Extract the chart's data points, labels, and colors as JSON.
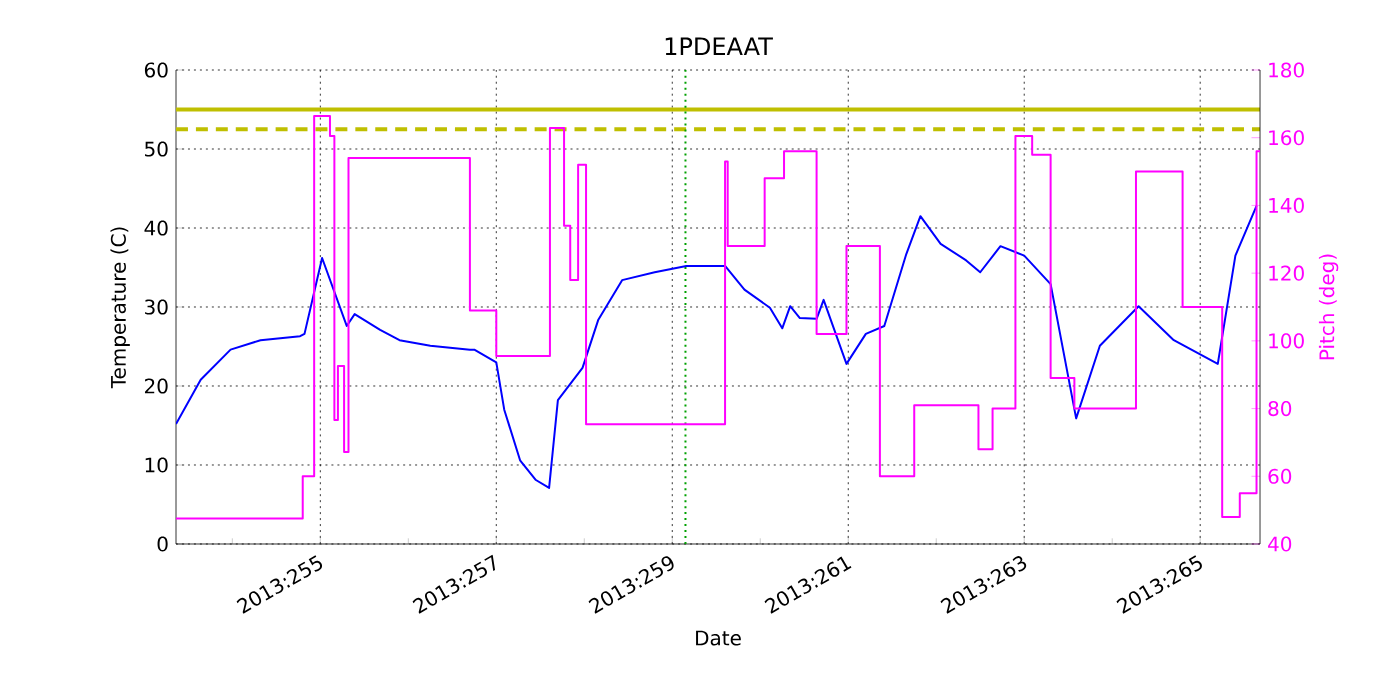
{
  "chart_data": {
    "type": "line",
    "title": "1PDEAAT",
    "xlabel": "Date",
    "ylabel": "Temperature (C)",
    "y2label": "Pitch (deg)",
    "xlim": [
      "2013-09-10T08:38",
      "2013-09-22T16:19"
    ],
    "xticks": [
      {
        "value": "2013-09-11",
        "label": null
      },
      {
        "value": "2013-09-12",
        "label": "2013:255"
      },
      {
        "value": "2013-09-13",
        "label": null
      },
      {
        "value": "2013-09-14",
        "label": "2013:257"
      },
      {
        "value": "2013-09-15",
        "label": null
      },
      {
        "value": "2013-09-16",
        "label": "2013:259"
      },
      {
        "value": "2013-09-17",
        "label": null
      },
      {
        "value": "2013-09-18",
        "label": "2013:261"
      },
      {
        "value": "2013-09-19",
        "label": null
      },
      {
        "value": "2013-09-20",
        "label": "2013:263"
      },
      {
        "value": "2013-09-21",
        "label": null
      },
      {
        "value": "2013-09-22",
        "label": "2013:265"
      }
    ],
    "ylim": [
      0,
      60
    ],
    "yticks": [
      0,
      10,
      20,
      30,
      40,
      50,
      60
    ],
    "y2lim": [
      40,
      180
    ],
    "y2ticks": [
      40,
      60,
      80,
      100,
      120,
      140,
      160,
      180
    ],
    "grid": true,
    "series": [
      {
        "color": "#0000ff",
        "x": [
          "2013-09-10T08:38",
          "2013-09-10T15:22",
          "2013-09-10T23:31",
          "2013-09-11T07:41",
          "2013-09-11T18:29",
          "2013-09-11T19:41",
          "2013-09-12T00:29",
          "2013-09-12T07:12",
          "2013-09-12T09:22",
          "2013-09-12T16:19",
          "2013-09-12T21:36",
          "2013-09-13T06:00",
          "2013-09-13T16:48",
          "2013-09-13T18:00",
          "2013-09-14T00:00",
          "2013-09-14T02:10",
          "2013-09-14T06:29",
          "2013-09-14T10:48",
          "2013-09-14T14:24",
          "2013-09-14T16:48",
          "2013-09-14T23:31",
          "2013-09-15T03:50",
          "2013-09-15T10:19",
          "2013-09-15T19:12",
          "2013-09-16T03:50",
          "2013-09-16T14:24",
          "2013-09-16T19:41",
          "2013-09-17T02:38",
          "2013-09-17T06:00",
          "2013-09-17T08:10",
          "2013-09-17T10:48",
          "2013-09-17T15:22",
          "2013-09-17T17:17",
          "2013-09-17T23:31",
          "2013-09-18T04:48",
          "2013-09-18T09:50",
          "2013-09-18T15:50",
          "2013-09-18T19:41",
          "2013-09-19T01:12",
          "2013-09-19T08:10",
          "2013-09-19T12:00",
          "2013-09-19T17:31",
          "2013-09-20T00:00",
          "2013-09-20T07:12",
          "2013-09-20T14:10",
          "2013-09-20T20:38",
          "2013-09-21T07:12",
          "2013-09-21T16:48",
          "2013-09-22T04:48",
          "2013-09-22T09:36",
          "2013-09-22T15:22"
        ],
        "values": [
          15.2,
          20.8,
          24.6,
          25.8,
          26.3,
          26.6,
          36.2,
          27.6,
          29.1,
          27.1,
          25.8,
          25.1,
          24.6,
          24.6,
          23.0,
          17.0,
          10.6,
          8.1,
          7.1,
          18.2,
          22.3,
          28.4,
          33.4,
          34.4,
          35.2,
          35.2,
          32.2,
          29.9,
          27.3,
          30.1,
          28.6,
          28.5,
          30.9,
          22.8,
          26.6,
          27.6,
          36.7,
          41.5,
          38.0,
          35.9,
          34.4,
          37.7,
          36.5,
          32.9,
          15.9,
          25.1,
          30.1,
          25.8,
          22.8,
          36.5,
          42.8
        ]
      },
      {
        "type": "step",
        "axis": "y2",
        "color": "#ff00ff",
        "x": [
          "2013-09-10T08:38",
          "2013-09-11T19:12",
          "2013-09-11T22:19",
          "2013-09-12T02:38",
          "2013-09-12T03:50",
          "2013-09-12T04:48",
          "2013-09-12T06:29",
          "2013-09-12T07:41",
          "2013-09-13T16:48",
          "2013-09-14T00:00",
          "2013-09-14T14:38",
          "2013-09-14T18:29",
          "2013-09-14T20:10",
          "2013-09-14T22:19",
          "2013-09-15T00:29",
          "2013-09-16T14:24",
          "2013-09-16T15:07",
          "2013-09-17T01:12",
          "2013-09-17T06:29",
          "2013-09-17T15:22",
          "2013-09-17T23:31",
          "2013-09-18T08:38",
          "2013-09-18T18:00",
          "2013-09-19T11:31",
          "2013-09-19T15:22",
          "2013-09-19T21:36",
          "2013-09-20T02:10",
          "2013-09-20T07:12",
          "2013-09-20T13:41",
          "2013-09-21T06:29",
          "2013-09-21T19:12",
          "2013-09-22T06:00",
          "2013-09-22T10:48",
          "2013-09-22T15:22",
          "2013-09-22T16:19"
        ],
        "values": [
          47.5,
          60,
          166.4,
          160.5,
          76.6,
          92.6,
          67.2,
          154,
          109,
          95.5,
          162.9,
          134,
          118,
          152,
          75.4,
          153,
          128,
          148,
          156,
          102,
          128,
          60,
          81,
          68,
          80,
          160.5,
          155,
          89,
          80,
          150,
          110,
          48,
          55,
          156,
          156
        ]
      }
    ],
    "ref_lines": [
      {
        "axis": "y",
        "value": 55,
        "color": "#bfbf00",
        "line_style": "solid"
      },
      {
        "axis": "y",
        "value": 52.5,
        "color": "#bfbf00",
        "line_style": "dashed"
      },
      {
        "axis": "x",
        "value": "2013-09-16T03:36",
        "color": "#00a000",
        "line_style": "dotted"
      }
    ]
  }
}
